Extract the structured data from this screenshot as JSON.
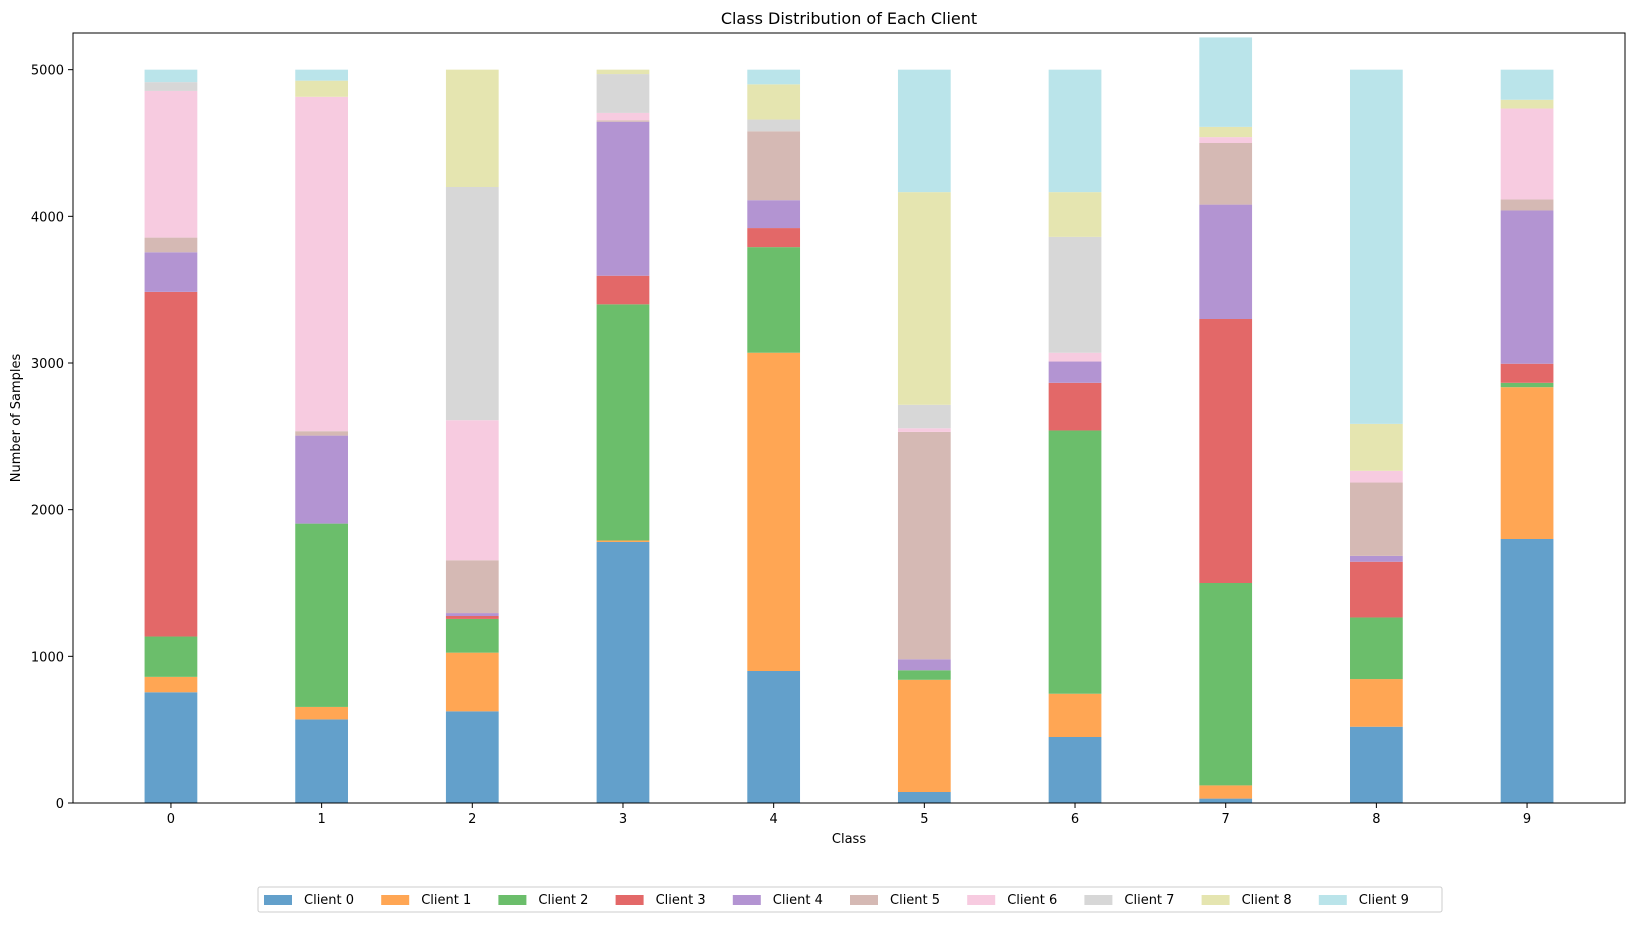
{
  "chart_data": {
    "type": "bar",
    "stacked": true,
    "title": "Class Distribution of Each Client",
    "xlabel": "Class",
    "ylabel": "Number of Samples",
    "categories": [
      "0",
      "1",
      "2",
      "3",
      "4",
      "5",
      "6",
      "7",
      "8",
      "9"
    ],
    "ylim": [
      0,
      5250
    ],
    "yticks": [
      0,
      1000,
      2000,
      3000,
      4000,
      5000
    ],
    "grid": false,
    "legend_position": "bottom-center",
    "series": [
      {
        "name": "Client 0",
        "color": "#63a0cb",
        "values": [
          755,
          570,
          625,
          1780,
          900,
          75,
          450,
          30,
          520,
          1800
        ]
      },
      {
        "name": "Client 1",
        "color": "#ffa654",
        "values": [
          105,
          85,
          400,
          10,
          2170,
          765,
          295,
          90,
          325,
          1035
        ]
      },
      {
        "name": "Client 2",
        "color": "#6bbe6b",
        "values": [
          275,
          1250,
          230,
          1610,
          720,
          65,
          1795,
          1380,
          420,
          30
        ]
      },
      {
        "name": "Client 3",
        "color": "#e36868",
        "values": [
          2350,
          0,
          20,
          195,
          130,
          0,
          325,
          1800,
          380,
          130
        ]
      },
      {
        "name": "Client 4",
        "color": "#b394d2",
        "values": [
          270,
          600,
          20,
          1050,
          190,
          75,
          145,
          780,
          40,
          1045
        ]
      },
      {
        "name": "Client 5",
        "color": "#d5b9b4",
        "values": [
          100,
          30,
          360,
          10,
          470,
          1550,
          0,
          420,
          500,
          75
        ]
      },
      {
        "name": "Client 6",
        "color": "#f7cbe0",
        "values": [
          1000,
          2280,
          955,
          50,
          0,
          25,
          60,
          40,
          80,
          620
        ]
      },
      {
        "name": "Client 7",
        "color": "#d7d7d7",
        "values": [
          60,
          0,
          1590,
          265,
          80,
          160,
          790,
          0,
          0,
          0
        ]
      },
      {
        "name": "Client 8",
        "color": "#e5e5b0",
        "values": [
          0,
          110,
          800,
          30,
          240,
          1450,
          305,
          70,
          320,
          60
        ]
      },
      {
        "name": "Client 9",
        "color": "#bae4ea",
        "values": [
          85,
          75,
          0,
          0,
          100,
          835,
          835,
          610,
          2415,
          205
        ]
      }
    ]
  }
}
